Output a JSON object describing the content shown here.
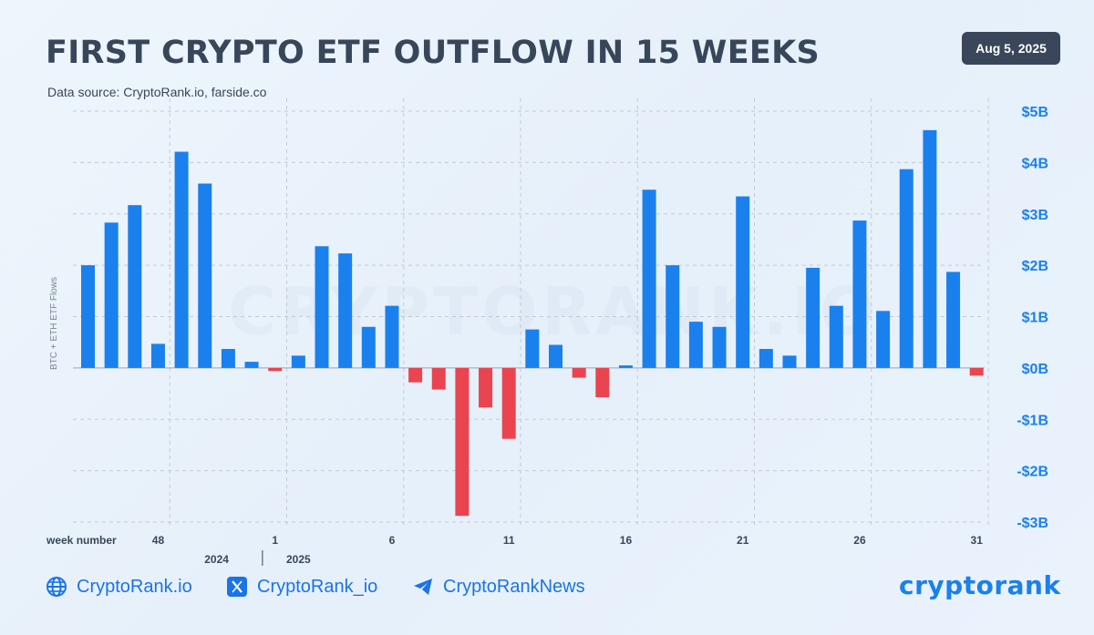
{
  "header": {
    "title": "FIRST CRYPTO ETF OUTFLOW IN 15 WEEKS",
    "subtitle": "Data source: CryptoRank.io, farside.co",
    "date": "Aug 5, 2025"
  },
  "watermark": "CRYPTORANK.IO",
  "footer": {
    "site": "CryptoRank.io",
    "twitter": "CryptoRank_io",
    "telegram": "CryptoRankNews",
    "logo": "cryptorank"
  },
  "colors": {
    "positive": "#1a80ee",
    "negative": "#ea4450",
    "axis": "#1a80ee",
    "text": "#38465a",
    "grid": "#c3cad4"
  },
  "chart_data": {
    "type": "bar",
    "ylabel": "BTC + ETH ETF Flows",
    "xlabel": "week number",
    "ylim": [
      -3,
      5
    ],
    "y_ticks": [
      {
        "value": 5,
        "label": "$5B"
      },
      {
        "value": 4,
        "label": "$4B"
      },
      {
        "value": 3,
        "label": "$3B"
      },
      {
        "value": 2,
        "label": "$2B"
      },
      {
        "value": 1,
        "label": "$1B"
      },
      {
        "value": 0,
        "label": "$0B"
      },
      {
        "value": -1,
        "label": "-$1B"
      },
      {
        "value": -2,
        "label": "-$2B"
      },
      {
        "value": -3,
        "label": "-$3B"
      }
    ],
    "x_ticks": [
      {
        "index": 3,
        "label": "48"
      },
      {
        "index": 8,
        "label": "1"
      },
      {
        "index": 13,
        "label": "6"
      },
      {
        "index": 18,
        "label": "11"
      },
      {
        "index": 23,
        "label": "16"
      },
      {
        "index": 28,
        "label": "21"
      },
      {
        "index": 33,
        "label": "26"
      },
      {
        "index": 38,
        "label": "31"
      }
    ],
    "year_labels": [
      {
        "index": 5.5,
        "label": "2024"
      },
      {
        "index": 9,
        "label": "2025"
      }
    ],
    "year_divider_index": 7.5,
    "grid": true,
    "values": [
      2.0,
      2.83,
      3.17,
      0.47,
      4.21,
      3.59,
      0.37,
      0.12,
      -0.06,
      0.24,
      2.37,
      2.23,
      0.8,
      1.21,
      -0.28,
      -0.42,
      -2.88,
      -0.77,
      -1.38,
      0.75,
      0.45,
      -0.19,
      -0.57,
      0.05,
      3.47,
      2.0,
      0.9,
      0.8,
      3.34,
      0.37,
      0.24,
      1.95,
      1.21,
      2.87,
      1.11,
      3.87,
      4.63,
      1.87,
      -0.15
    ]
  }
}
